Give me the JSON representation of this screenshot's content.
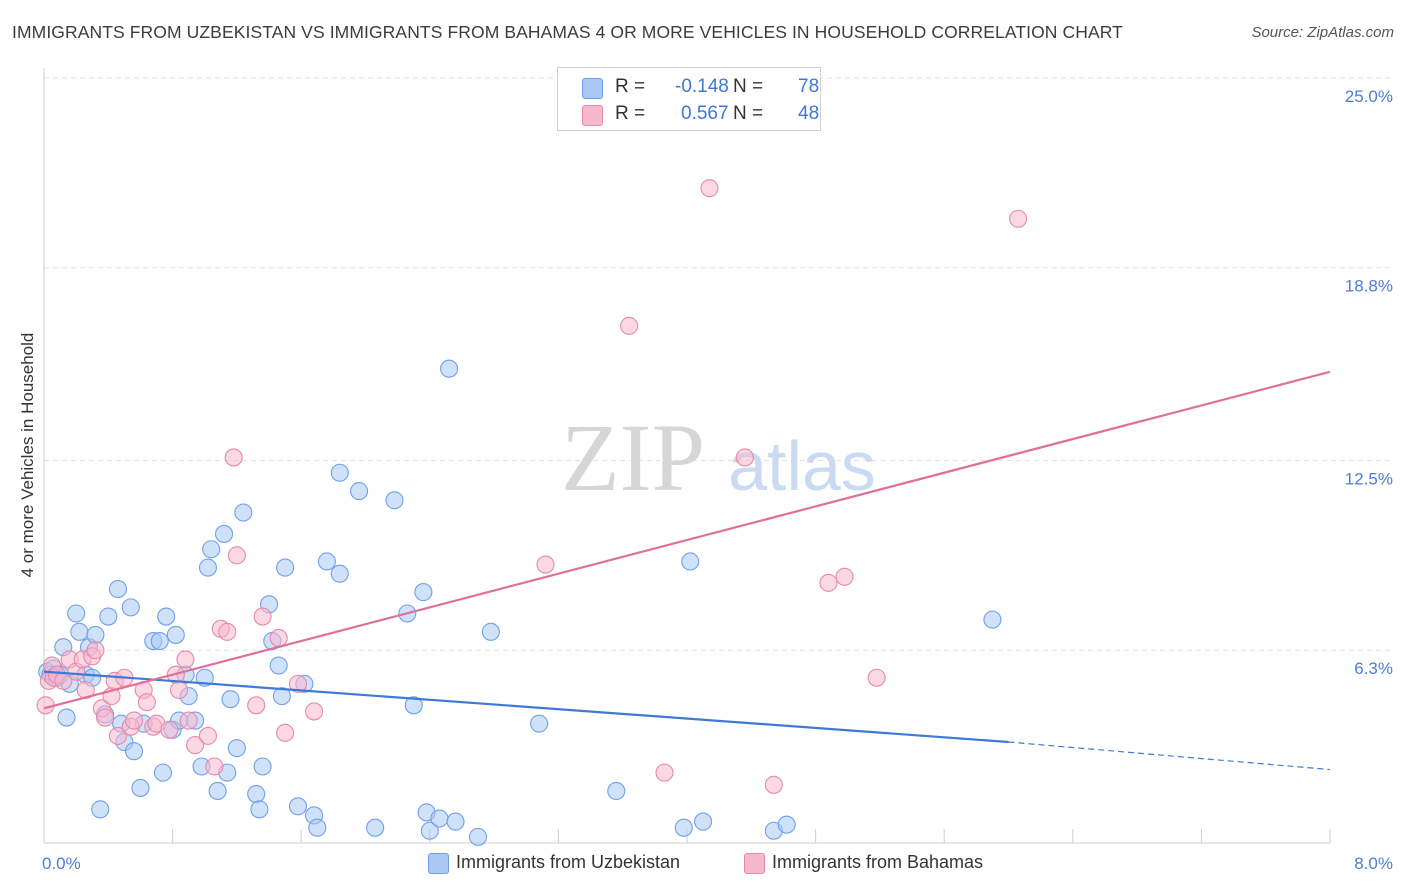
{
  "header": {
    "title": "IMMIGRANTS FROM UZBEKISTAN VS IMMIGRANTS FROM BAHAMAS 4 OR MORE VEHICLES IN HOUSEHOLD CORRELATION CHART",
    "source": "Source: ZipAtlas.com"
  },
  "watermark": {
    "zip": "ZIP",
    "atlas": "atlas"
  },
  "legend": {
    "rows": [
      {
        "r_label": "R =",
        "r_value": "-0.148",
        "n_label": "N =",
        "n_value": "78",
        "color": "#a9c8f5"
      },
      {
        "r_label": "R =",
        "r_value": "0.567",
        "n_label": "N =",
        "n_value": "48",
        "color": "#f7b8cc"
      }
    ]
  },
  "bottom_legend": [
    {
      "label": "Immigrants from Uzbekistan",
      "color": "#a9c8f5"
    },
    {
      "label": "Immigrants from Bahamas",
      "color": "#f7b8cc"
    }
  ],
  "chart_data": {
    "type": "scatter",
    "title": "IMMIGRANTS FROM UZBEKISTAN VS IMMIGRANTS FROM BAHAMAS 4 OR MORE VEHICLES IN HOUSEHOLD CORRELATION CHART",
    "xlabel": "",
    "ylabel": "4 or more Vehicles in Household",
    "xlim": [
      0,
      8
    ],
    "ylim": [
      0,
      25
    ],
    "x_tick_labels": [
      "0.0%",
      "8.0%"
    ],
    "y_ticks": [
      6.3,
      12.5,
      18.8,
      25.0
    ],
    "y_tick_labels": [
      "6.3%",
      "12.5%",
      "18.8%",
      "25.0%"
    ],
    "grid": true,
    "legend_position": "top-center",
    "series": [
      {
        "name": "Immigrants from Uzbekistan",
        "color": "#6fa0e8",
        "fill": "#a9c8f5",
        "trend": {
          "x": [
            0.0,
            6.0
          ],
          "y": [
            5.6,
            3.3
          ],
          "dashed_to": [
            8.0,
            2.4
          ]
        },
        "points": [
          [
            0.02,
            5.6
          ],
          [
            0.04,
            5.5
          ],
          [
            0.06,
            5.7
          ],
          [
            0.08,
            5.4
          ],
          [
            0.1,
            5.5
          ],
          [
            0.12,
            6.4
          ],
          [
            0.14,
            4.1
          ],
          [
            0.16,
            5.2
          ],
          [
            0.2,
            7.5
          ],
          [
            0.22,
            6.9
          ],
          [
            0.26,
            5.5
          ],
          [
            0.28,
            6.4
          ],
          [
            0.3,
            5.4
          ],
          [
            0.32,
            6.8
          ],
          [
            0.35,
            1.1
          ],
          [
            0.38,
            4.2
          ],
          [
            0.4,
            7.4
          ],
          [
            0.46,
            8.3
          ],
          [
            0.48,
            3.9
          ],
          [
            0.5,
            3.3
          ],
          [
            0.54,
            7.7
          ],
          [
            0.56,
            3.0
          ],
          [
            0.6,
            1.8
          ],
          [
            0.62,
            3.9
          ],
          [
            0.68,
            6.6
          ],
          [
            0.72,
            6.6
          ],
          [
            0.74,
            2.3
          ],
          [
            0.76,
            7.4
          ],
          [
            0.8,
            3.7
          ],
          [
            0.82,
            6.8
          ],
          [
            0.84,
            4.0
          ],
          [
            0.88,
            5.5
          ],
          [
            0.9,
            4.8
          ],
          [
            0.94,
            4.0
          ],
          [
            0.98,
            2.5
          ],
          [
            1.0,
            5.4
          ],
          [
            1.02,
            9.0
          ],
          [
            1.04,
            9.6
          ],
          [
            1.08,
            1.7
          ],
          [
            1.12,
            10.1
          ],
          [
            1.14,
            2.3
          ],
          [
            1.16,
            4.7
          ],
          [
            1.2,
            3.1
          ],
          [
            1.24,
            10.8
          ],
          [
            1.32,
            1.6
          ],
          [
            1.34,
            1.1
          ],
          [
            1.36,
            2.5
          ],
          [
            1.4,
            7.8
          ],
          [
            1.42,
            6.6
          ],
          [
            1.46,
            5.8
          ],
          [
            1.48,
            4.8
          ],
          [
            1.5,
            9.0
          ],
          [
            1.58,
            1.2
          ],
          [
            1.62,
            5.2
          ],
          [
            1.68,
            0.9
          ],
          [
            1.7,
            0.5
          ],
          [
            1.76,
            9.2
          ],
          [
            1.84,
            8.8
          ],
          [
            1.84,
            12.1
          ],
          [
            1.96,
            11.5
          ],
          [
            2.06,
            0.5
          ],
          [
            2.18,
            11.2
          ],
          [
            2.26,
            7.5
          ],
          [
            2.3,
            4.5
          ],
          [
            2.36,
            8.2
          ],
          [
            2.38,
            1.0
          ],
          [
            2.4,
            0.4
          ],
          [
            2.46,
            0.8
          ],
          [
            2.52,
            15.5
          ],
          [
            2.56,
            0.7
          ],
          [
            2.7,
            0.2
          ],
          [
            2.78,
            6.9
          ],
          [
            3.08,
            3.9
          ],
          [
            3.56,
            1.7
          ],
          [
            3.98,
            0.5
          ],
          [
            4.02,
            9.2
          ],
          [
            4.1,
            0.7
          ],
          [
            4.54,
            0.4
          ],
          [
            4.62,
            0.6
          ],
          [
            5.9,
            7.3
          ]
        ]
      },
      {
        "name": "Immigrants from Bahamas",
        "color": "#e58aa8",
        "fill": "#f7b8cc",
        "trend": {
          "x": [
            0.0,
            8.0
          ],
          "y": [
            4.4,
            15.4
          ]
        },
        "points": [
          [
            0.01,
            4.5
          ],
          [
            0.03,
            5.3
          ],
          [
            0.05,
            5.8
          ],
          [
            0.06,
            5.4
          ],
          [
            0.08,
            5.5
          ],
          [
            0.12,
            5.3
          ],
          [
            0.16,
            6.0
          ],
          [
            0.2,
            5.6
          ],
          [
            0.24,
            6.0
          ],
          [
            0.26,
            5.0
          ],
          [
            0.3,
            6.1
          ],
          [
            0.32,
            6.3
          ],
          [
            0.36,
            4.4
          ],
          [
            0.38,
            4.1
          ],
          [
            0.42,
            4.8
          ],
          [
            0.44,
            5.3
          ],
          [
            0.46,
            3.5
          ],
          [
            0.5,
            5.4
          ],
          [
            0.54,
            3.8
          ],
          [
            0.56,
            4.0
          ],
          [
            0.62,
            5.0
          ],
          [
            0.64,
            4.6
          ],
          [
            0.68,
            3.8
          ],
          [
            0.7,
            3.9
          ],
          [
            0.78,
            3.7
          ],
          [
            0.82,
            5.5
          ],
          [
            0.84,
            5.0
          ],
          [
            0.88,
            6.0
          ],
          [
            0.9,
            4.0
          ],
          [
            0.94,
            3.2
          ],
          [
            1.02,
            3.5
          ],
          [
            1.06,
            2.5
          ],
          [
            1.1,
            7.0
          ],
          [
            1.14,
            6.9
          ],
          [
            1.18,
            12.6
          ],
          [
            1.2,
            9.4
          ],
          [
            1.32,
            4.5
          ],
          [
            1.36,
            7.4
          ],
          [
            1.46,
            6.7
          ],
          [
            1.5,
            3.6
          ],
          [
            1.58,
            5.2
          ],
          [
            1.68,
            4.3
          ],
          [
            3.12,
            9.1
          ],
          [
            3.64,
            16.9
          ],
          [
            3.86,
            2.3
          ],
          [
            4.14,
            21.4
          ],
          [
            4.36,
            12.6
          ],
          [
            4.54,
            1.9
          ],
          [
            4.88,
            8.5
          ],
          [
            4.98,
            8.7
          ],
          [
            5.18,
            5.4
          ],
          [
            6.06,
            20.4
          ]
        ]
      }
    ]
  }
}
